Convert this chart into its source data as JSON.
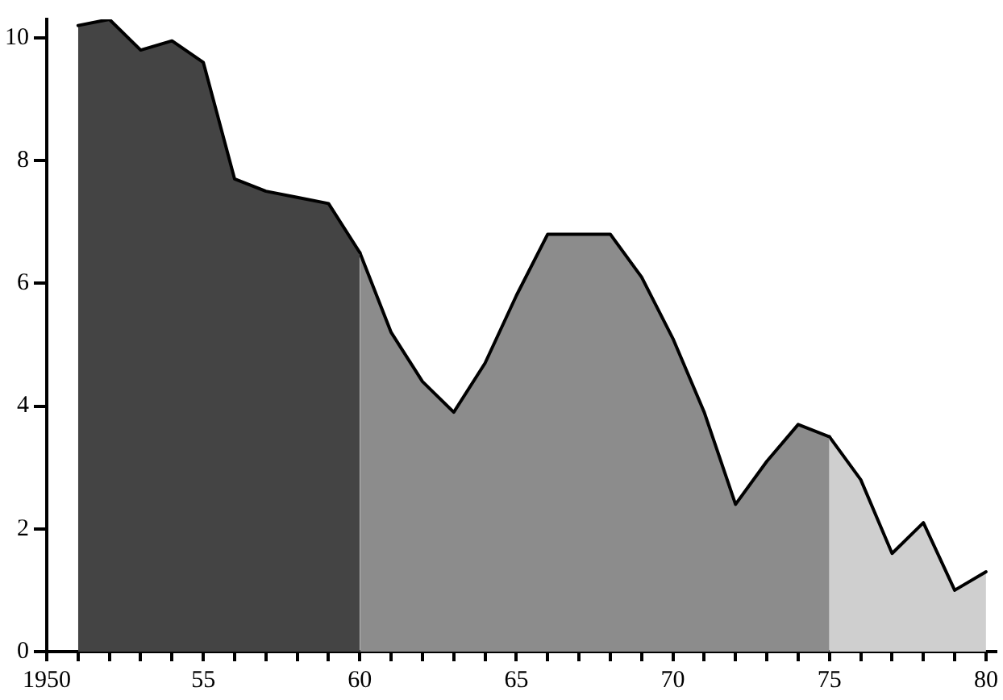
{
  "chart_data": {
    "type": "area",
    "series": [
      {
        "color": "#444444",
        "x": [
          1951,
          1952,
          1953,
          1954,
          1955,
          1956,
          1957,
          1958,
          1959,
          1960
        ],
        "values": [
          10.2,
          10.3,
          9.8,
          9.95,
          9.6,
          7.7,
          7.5,
          7.4,
          7.3,
          6.5
        ]
      },
      {
        "color": "#8c8c8c",
        "x": [
          1960,
          1961,
          1962,
          1963,
          1964,
          1965,
          1966,
          1967,
          1968,
          1969,
          1970,
          1971,
          1972,
          1973,
          1974,
          1975
        ],
        "values": [
          6.5,
          5.2,
          4.4,
          3.9,
          4.7,
          5.8,
          6.8,
          6.8,
          6.8,
          6.1,
          5.1,
          3.9,
          2.4,
          3.1,
          3.7,
          3.5
        ]
      },
      {
        "color": "#cfcfcf",
        "x": [
          1975,
          1976,
          1977,
          1978,
          1979,
          1980
        ],
        "values": [
          3.5,
          2.8,
          1.6,
          2.1,
          1.0,
          1.3
        ]
      }
    ],
    "xlim": [
      1950,
      1980.3
    ],
    "xticks": [
      {
        "value": 1950,
        "label": "1950"
      },
      {
        "value": 1951,
        "label": null
      },
      {
        "value": 1952,
        "label": null
      },
      {
        "value": 1953,
        "label": null
      },
      {
        "value": 1954,
        "label": null
      },
      {
        "value": 1955,
        "label": "55"
      },
      {
        "value": 1956,
        "label": null
      },
      {
        "value": 1957,
        "label": null
      },
      {
        "value": 1958,
        "label": null
      },
      {
        "value": 1959,
        "label": null
      },
      {
        "value": 1960,
        "label": "60"
      },
      {
        "value": 1961,
        "label": null
      },
      {
        "value": 1962,
        "label": null
      },
      {
        "value": 1963,
        "label": null
      },
      {
        "value": 1964,
        "label": null
      },
      {
        "value": 1965,
        "label": "65"
      },
      {
        "value": 1966,
        "label": null
      },
      {
        "value": 1967,
        "label": null
      },
      {
        "value": 1968,
        "label": null
      },
      {
        "value": 1969,
        "label": null
      },
      {
        "value": 1970,
        "label": "70"
      },
      {
        "value": 1971,
        "label": null
      },
      {
        "value": 1972,
        "label": null
      },
      {
        "value": 1973,
        "label": null
      },
      {
        "value": 1974,
        "label": null
      },
      {
        "value": 1975,
        "label": "75"
      },
      {
        "value": 1976,
        "label": null
      },
      {
        "value": 1977,
        "label": null
      },
      {
        "value": 1978,
        "label": null
      },
      {
        "value": 1979,
        "label": null
      },
      {
        "value": 1980,
        "label": "80"
      }
    ],
    "ylim": [
      0,
      10.3
    ],
    "yticks": [
      0,
      2,
      4,
      6,
      8,
      10
    ]
  }
}
